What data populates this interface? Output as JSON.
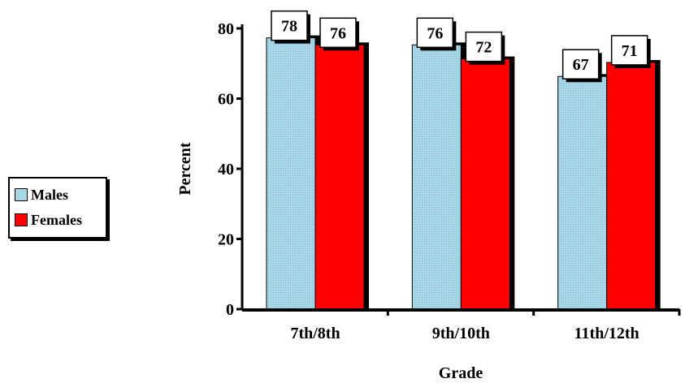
{
  "chart_data": {
    "type": "bar",
    "categories": [
      "7th/8th",
      "9th/10th",
      "11th/12th"
    ],
    "series": [
      {
        "name": "Males",
        "values": [
          78,
          76,
          67
        ]
      },
      {
        "name": "Females",
        "values": [
          76,
          72,
          71
        ]
      }
    ],
    "xlabel": "Grade",
    "ylabel": "Percent",
    "ylim": [
      0,
      80
    ],
    "yticks": [
      0,
      20,
      40,
      60,
      80
    ],
    "grid": false,
    "legend_position": "left",
    "colors": {
      "Males": "#a8d8e8",
      "Females": "#ff0000",
      "shadow": "#000000"
    }
  }
}
